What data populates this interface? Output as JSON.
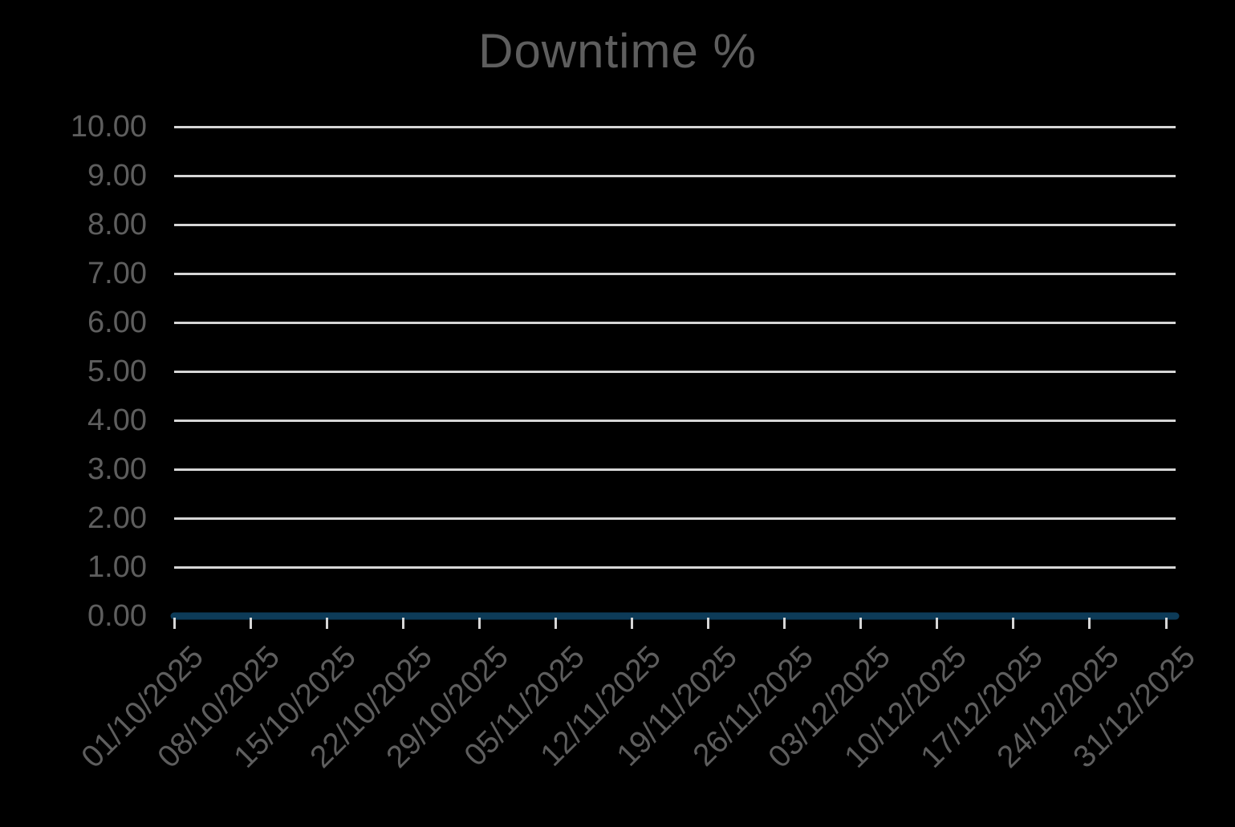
{
  "title": {
    "text": "Downtime %"
  },
  "colors": {
    "background": "#000000",
    "title_text": "#5e5e5e",
    "axis_text": "#5e5e5e",
    "gridline": "#d6d6d6",
    "tick": "#d6d6d6",
    "series_line": "#0d3b58"
  },
  "chart_data": {
    "type": "line",
    "title": "Downtime %",
    "xlabel": "",
    "ylabel": "",
    "ylim": [
      0,
      10
    ],
    "y_tick_labels": [
      "10.00",
      "9.00",
      "8.00",
      "7.00",
      "6.00",
      "5.00",
      "4.00",
      "3.00",
      "2.00",
      "1.00",
      "0.00"
    ],
    "grid": true,
    "legend": false,
    "x_label_rotation": -45,
    "x": [
      "01/10/2025",
      "08/10/2025",
      "15/10/2025",
      "22/10/2025",
      "29/10/2025",
      "05/11/2025",
      "12/11/2025",
      "19/11/2025",
      "26/11/2025",
      "03/12/2025",
      "10/12/2025",
      "17/12/2025",
      "24/12/2025",
      "31/12/2025"
    ],
    "series": [
      {
        "name": "Downtime %",
        "values": [
          0.0,
          0.0,
          0.0,
          0.0,
          0.0,
          0.0,
          0.0,
          0.0,
          0.0,
          0.0,
          0.0,
          0.0,
          0.0,
          0.0
        ]
      }
    ]
  }
}
